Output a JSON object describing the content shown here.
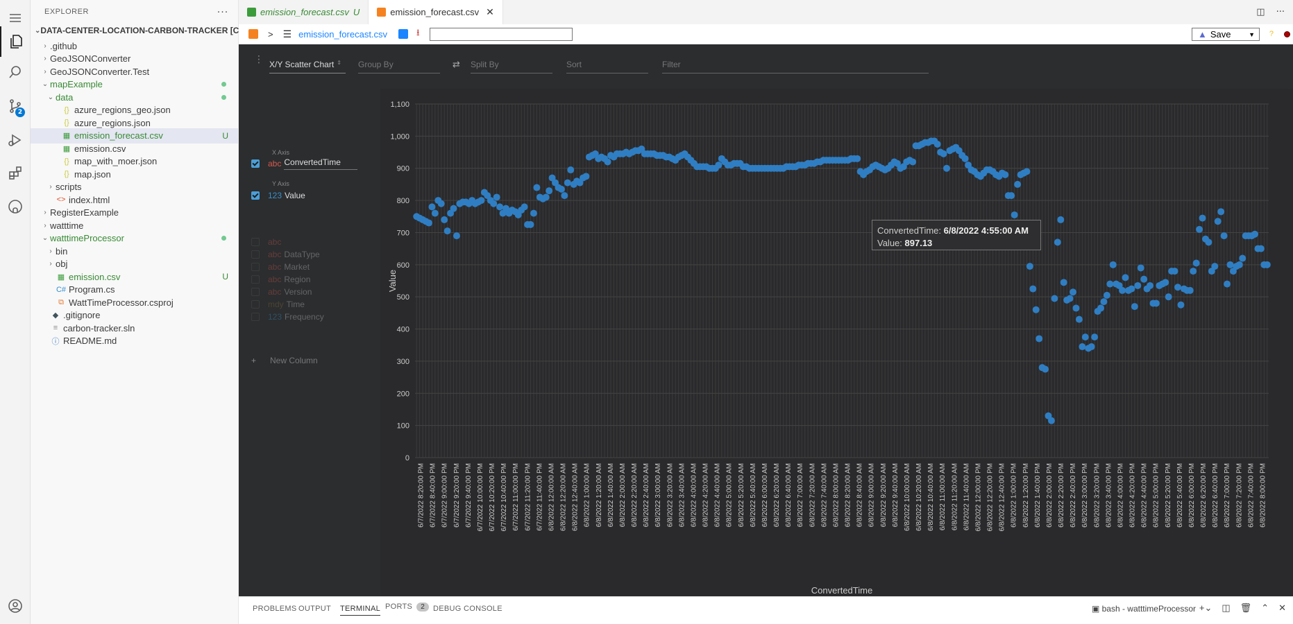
{
  "activity": {
    "scm_badge": "2"
  },
  "explorer": {
    "title": "EXPLORER",
    "more": "···",
    "root": "DATA-CENTER-LOCATION-CARBON-TRACKER [CO...",
    "items": [
      {
        "label": ".github",
        "kind": "folder",
        "depth": 1,
        "open": false
      },
      {
        "label": "GeoJSONConverter",
        "kind": "folder",
        "depth": 1,
        "open": false
      },
      {
        "label": "GeoJSONConverter.Test",
        "kind": "folder",
        "depth": 1,
        "open": false
      },
      {
        "label": "mapExample",
        "kind": "folder",
        "depth": 1,
        "open": true,
        "green": true,
        "dot": true
      },
      {
        "label": "data",
        "kind": "folder",
        "depth": 2,
        "open": true,
        "green": true,
        "dot": true
      },
      {
        "label": "azure_regions_geo.json",
        "kind": "json",
        "depth": 3
      },
      {
        "label": "azure_regions.json",
        "kind": "json",
        "depth": 3
      },
      {
        "label": "emission_forecast.csv",
        "kind": "csv",
        "depth": 3,
        "green": true,
        "status": "U",
        "selected": true
      },
      {
        "label": "emission.csv",
        "kind": "csv",
        "depth": 3
      },
      {
        "label": "map_with_moer.json",
        "kind": "json",
        "depth": 3
      },
      {
        "label": "map.json",
        "kind": "json",
        "depth": 3
      },
      {
        "label": "scripts",
        "kind": "folder",
        "depth": 2,
        "open": false
      },
      {
        "label": "index.html",
        "kind": "html",
        "depth": 2
      },
      {
        "label": "RegisterExample",
        "kind": "folder",
        "depth": 1,
        "open": false
      },
      {
        "label": "watttime",
        "kind": "folder",
        "depth": 1,
        "open": false
      },
      {
        "label": "watttimeProcessor",
        "kind": "folder",
        "depth": 1,
        "open": true,
        "green": true,
        "dot": true
      },
      {
        "label": "bin",
        "kind": "folder",
        "depth": 2,
        "open": false
      },
      {
        "label": "obj",
        "kind": "folder",
        "depth": 2,
        "open": false
      },
      {
        "label": "emission.csv",
        "kind": "csv",
        "depth": 2,
        "green": true,
        "status": "U"
      },
      {
        "label": "Program.cs",
        "kind": "cs",
        "depth": 2
      },
      {
        "label": "WattTimeProcessor.csproj",
        "kind": "proj",
        "depth": 2
      },
      {
        "label": ".gitignore",
        "kind": "git",
        "depth": 1
      },
      {
        "label": "carbon-tracker.sln",
        "kind": "sln",
        "depth": 1
      },
      {
        "label": "README.md",
        "kind": "info",
        "depth": 1
      }
    ]
  },
  "tabs": [
    {
      "label": "emission_forecast.csv",
      "suffix": "U",
      "active": false
    },
    {
      "label": "emission_forecast.csv",
      "suffix": "",
      "active": true
    }
  ],
  "toolbar": {
    "gt": ">",
    "filename": "emission_forecast.csv",
    "save": "Save",
    "help": "?"
  },
  "perspective": {
    "plugin": "X/Y Scatter Chart",
    "group_by": "Group By",
    "split_by": "Split By",
    "sort": "Sort",
    "filter": "Filter",
    "x_axis_label": "X Axis",
    "y_axis_label": "Y Axis",
    "x_col": {
      "type": "abc",
      "name": "ConvertedTime"
    },
    "y_col": {
      "type": "123",
      "name": "Value"
    },
    "other_cols": [
      {
        "type": "abc",
        "name": ""
      },
      {
        "type": "abc",
        "name": "DataType"
      },
      {
        "type": "abc",
        "name": "Market"
      },
      {
        "type": "abc",
        "name": "Region"
      },
      {
        "type": "abc",
        "name": "Version"
      },
      {
        "type": "mdy",
        "name": "Time"
      },
      {
        "type": "123",
        "name": "Frequency"
      }
    ],
    "new_column": "New Column"
  },
  "tooltip": {
    "k1": "ConvertedTime: ",
    "v1": "6/8/2022 4:55:00 AM",
    "k2": "Value: ",
    "v2": "897.13"
  },
  "chart_data": {
    "type": "scatter",
    "xlabel": "ConvertedTime",
    "ylabel": "Value",
    "ylim": [
      0,
      1100
    ],
    "yticks": [
      "0",
      "100",
      "200",
      "300",
      "400",
      "500",
      "600",
      "700",
      "800",
      "900",
      "1,000",
      "1,100"
    ],
    "xtick_labels": [
      "6/7/2022 8:20:00 PM",
      "6/7/2022 8:40:00 PM",
      "6/7/2022 9:00:00 PM",
      "6/7/2022 9:20:00 PM",
      "6/7/2022 9:40:00 PM",
      "6/7/2022 10:00:00 PM",
      "6/7/2022 10:20:00 PM",
      "6/7/2022 10:40:00 PM",
      "6/7/2022 11:00:00 PM",
      "6/7/2022 11:20:00 PM",
      "6/7/2022 11:40:00 PM",
      "6/8/2022 12:00:00 AM",
      "6/8/2022 12:20:00 AM",
      "6/8/2022 12:40:00 AM",
      "6/8/2022 1:00:00 AM",
      "6/8/2022 1:20:00 AM",
      "6/8/2022 1:40:00 AM",
      "6/8/2022 2:00:00 AM",
      "6/8/2022 2:20:00 AM",
      "6/8/2022 2:40:00 AM",
      "6/8/2022 3:00:00 AM",
      "6/8/2022 3:20:00 AM",
      "6/8/2022 3:40:00 AM",
      "6/8/2022 4:00:00 AM",
      "6/8/2022 4:20:00 AM",
      "6/8/2022 4:40:00 AM",
      "6/8/2022 5:00:00 AM",
      "6/8/2022 5:20:00 AM",
      "6/8/2022 5:40:00 AM",
      "6/8/2022 6:00:00 AM",
      "6/8/2022 6:20:00 AM",
      "6/8/2022 6:40:00 AM",
      "6/8/2022 7:00:00 AM",
      "6/8/2022 7:20:00 AM",
      "6/8/2022 7:40:00 AM",
      "6/8/2022 8:00:00 AM",
      "6/8/2022 8:20:00 AM",
      "6/8/2022 8:40:00 AM",
      "6/8/2022 9:00:00 AM",
      "6/8/2022 9:20:00 AM",
      "6/8/2022 9:40:00 AM",
      "6/8/2022 10:00:00 AM",
      "6/8/2022 10:20:00 AM",
      "6/8/2022 10:40:00 AM",
      "6/8/2022 11:00:00 AM",
      "6/8/2022 11:20:00 AM",
      "6/8/2022 11:40:00 AM",
      "6/8/2022 12:00:00 PM",
      "6/8/2022 12:20:00 PM",
      "6/8/2022 12:40:00 PM",
      "6/8/2022 1:00:00 PM",
      "6/8/2022 1:20:00 PM",
      "6/8/2022 1:40:00 PM",
      "6/8/2022 2:00:00 PM",
      "6/8/2022 2:20:00 PM",
      "6/8/2022 2:40:00 PM",
      "6/8/2022 3:00:00 PM",
      "6/8/2022 3:20:00 PM",
      "6/8/2022 3:40:00 PM",
      "6/8/2022 4:00:00 PM",
      "6/8/2022 4:20:00 PM",
      "6/8/2022 4:40:00 PM",
      "6/8/2022 5:00:00 PM",
      "6/8/2022 5:20:00 PM",
      "6/8/2022 5:40:00 PM",
      "6/8/2022 6:00:00 PM",
      "6/8/2022 6:20:00 PM",
      "6/8/2022 6:40:00 PM",
      "6/8/2022 7:00:00 PM",
      "6/8/2022 7:20:00 PM",
      "6/8/2022 7:40:00 PM",
      "6/8/2022 8:00:00 PM"
    ],
    "series_color": "#2f7ec3",
    "values": [
      750,
      745,
      740,
      735,
      730,
      780,
      760,
      800,
      790,
      740,
      705,
      760,
      775,
      690,
      790,
      795,
      795,
      790,
      800,
      790,
      795,
      800,
      825,
      815,
      800,
      790,
      810,
      780,
      760,
      775,
      760,
      770,
      765,
      755,
      770,
      780,
      725,
      725,
      760,
      840,
      810,
      805,
      810,
      830,
      870,
      855,
      840,
      835,
      815,
      855,
      895,
      850,
      860,
      855,
      870,
      875,
      935,
      940,
      945,
      930,
      935,
      930,
      920,
      940,
      935,
      945,
      945,
      945,
      950,
      945,
      950,
      955,
      955,
      960,
      945,
      945,
      945,
      945,
      940,
      940,
      940,
      935,
      935,
      930,
      925,
      935,
      940,
      945,
      935,
      925,
      915,
      905,
      905,
      905,
      905,
      900,
      900,
      900,
      910,
      930,
      920,
      910,
      910,
      915,
      915,
      915,
      905,
      905,
      900,
      900,
      900,
      900,
      900,
      900,
      900,
      900,
      900,
      900,
      900,
      900,
      905,
      905,
      905,
      905,
      910,
      910,
      910,
      915,
      915,
      915,
      920,
      920,
      925,
      925,
      925,
      925,
      925,
      925,
      925,
      925,
      925,
      930,
      930,
      930,
      890,
      880,
      890,
      895,
      905,
      910,
      905,
      900,
      895,
      900,
      910,
      920,
      915,
      900,
      905,
      920,
      925,
      920,
      970,
      970,
      975,
      980,
      980,
      985,
      985,
      975,
      950,
      945,
      900,
      955,
      960,
      965,
      955,
      940,
      930,
      910,
      895,
      890,
      880,
      875,
      885,
      895,
      895,
      890,
      880,
      875,
      885,
      880,
      815,
      815,
      755,
      850,
      880,
      885,
      890,
      595,
      525,
      460,
      370,
      280,
      275,
      130,
      115,
      495,
      670,
      740,
      545,
      490,
      495,
      515,
      465,
      430,
      345,
      375,
      340,
      345,
      375,
      455,
      465,
      485,
      505,
      540,
      600,
      540,
      535,
      520,
      560,
      520,
      525,
      470,
      535,
      590,
      555,
      525,
      535,
      480,
      480,
      535,
      540,
      545,
      500,
      580,
      580,
      530,
      475,
      525,
      520,
      520,
      580,
      605,
      710,
      745,
      680,
      670,
      580,
      595,
      735,
      765,
      690,
      540,
      600,
      580,
      595,
      600,
      620,
      690,
      690,
      690,
      695,
      650,
      650,
      600,
      600
    ]
  },
  "panel": {
    "tabs": [
      "PROBLEMS",
      "OUTPUT",
      "TERMINAL",
      "PORTS",
      "DEBUG CONSOLE"
    ],
    "active": "TERMINAL",
    "ports_badge": "2",
    "terminal_name": "bash - watttimeProcessor"
  }
}
